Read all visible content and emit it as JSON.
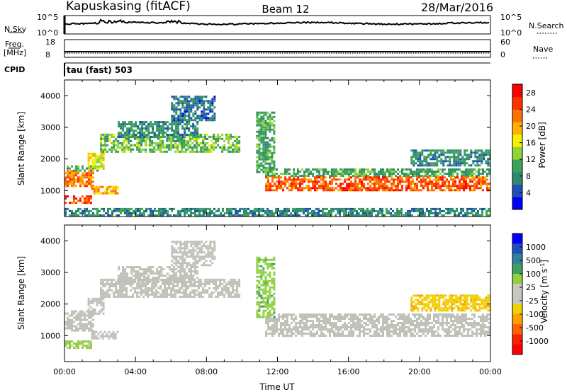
{
  "header": {
    "station": "Kapuskasing (fitACF)",
    "beam": "Beam 12",
    "date": "28/Mar/2016"
  },
  "panels": {
    "nsky": {
      "left_label": "N.Sky",
      "right_label": "N.Search",
      "left_ticks": [
        "10^5",
        "10^0"
      ],
      "right_ticks": [
        "10^5",
        "10^0"
      ]
    },
    "freq": {
      "left_label_1": "Freq.",
      "left_label_2": "[MHz]",
      "right_label": "Nave",
      "left_ticks": [
        "18",
        "8"
      ],
      "right_ticks": [
        "60",
        "0"
      ]
    },
    "cpid": {
      "label": "CPID",
      "value": "tau (fast) 503"
    }
  },
  "colors": {
    "power_scale": [
      "#0000ff",
      "#1f4fb4",
      "#2e8a6e",
      "#3da35a",
      "#8fd23a",
      "#f2f200",
      "#ffb000",
      "#ff7000",
      "#ff3000",
      "#ff0000"
    ],
    "velocity_scale": [
      "#0000ff",
      "#2050c0",
      "#3080a0",
      "#40a060",
      "#90d040",
      "#c8c8c0",
      "#c8c8c0",
      "#f0d000",
      "#ffa000",
      "#ff6000",
      "#ff2000",
      "#ff0000"
    ],
    "ground_scatter": "#c0c0b8"
  },
  "chart_data": [
    {
      "type": "heatmap",
      "title": "",
      "xlabel": "Time UT",
      "ylabel": "Slant Range [km]",
      "xlim": [
        "00:00",
        "24:00"
      ],
      "ylim": [
        180,
        4500
      ],
      "x_ticks": [
        "00:00",
        "04:00",
        "08:00",
        "12:00",
        "16:00",
        "20:00",
        "00:00"
      ],
      "y_ticks": [
        1000,
        2000,
        3000,
        4000
      ],
      "colorbar": {
        "label": "Power [dB]",
        "ticks": [
          4,
          8,
          12,
          16,
          20,
          24,
          28
        ],
        "range": [
          0,
          30
        ]
      },
      "regions": [
        {
          "t0": 0.0,
          "t1": 1.6,
          "r0": 1150,
          "r1": 1650,
          "value": 22
        },
        {
          "t0": 0.0,
          "t1": 1.5,
          "r0": 600,
          "r1": 850,
          "value": 24
        },
        {
          "t0": 1.5,
          "t1": 3.0,
          "r0": 900,
          "r1": 1150,
          "value": 20
        },
        {
          "t0": 0.0,
          "t1": 1.8,
          "r0": 1650,
          "r1": 1800,
          "value": 10
        },
        {
          "t0": 1.3,
          "t1": 2.2,
          "r0": 1700,
          "r1": 2200,
          "value": 16
        },
        {
          "t0": 2.0,
          "t1": 9.8,
          "r0": 2200,
          "r1": 2800,
          "value": 12
        },
        {
          "t0": 3.0,
          "t1": 7.5,
          "r0": 2700,
          "r1": 3200,
          "value": 8
        },
        {
          "t0": 11.3,
          "t1": 24.0,
          "r0": 1450,
          "r1": 1700,
          "value": 10
        },
        {
          "t0": 11.3,
          "t1": 24.0,
          "r0": 1000,
          "r1": 1450,
          "value": 24
        },
        {
          "t0": 10.8,
          "t1": 11.8,
          "r0": 1600,
          "r1": 3500,
          "value": 10
        },
        {
          "t0": 19.5,
          "t1": 24.0,
          "r0": 1800,
          "r1": 2300,
          "value": 8
        },
        {
          "t0": 6.0,
          "t1": 8.5,
          "r0": 3200,
          "r1": 4000,
          "value": 6
        },
        {
          "t0": 0.0,
          "t1": 24.0,
          "r0": 200,
          "r1": 450,
          "value": 8
        }
      ]
    },
    {
      "type": "heatmap",
      "title": "",
      "xlabel": "Time UT",
      "ylabel": "Slant Range [km]",
      "xlim": [
        "00:00",
        "24:00"
      ],
      "ylim": [
        180,
        4500
      ],
      "x_ticks": [
        "00:00",
        "04:00",
        "08:00",
        "12:00",
        "16:00",
        "20:00",
        "00:00"
      ],
      "y_ticks": [
        1000,
        2000,
        3000,
        4000
      ],
      "colorbar": {
        "label": "Velocity [m s^-1]",
        "ticks": [
          1000,
          500,
          100,
          25,
          -25,
          -100,
          -500,
          -1000
        ]
      },
      "regions": [
        {
          "t0": 0.0,
          "t1": 1.6,
          "r0": 1150,
          "r1": 1800,
          "value": 0
        },
        {
          "t0": 0.0,
          "t1": 1.5,
          "r0": 600,
          "r1": 850,
          "value": 50
        },
        {
          "t0": 1.5,
          "t1": 3.0,
          "r0": 900,
          "r1": 1150,
          "value": 0
        },
        {
          "t0": 1.3,
          "t1": 2.2,
          "r0": 1700,
          "r1": 2200,
          "value": 0
        },
        {
          "t0": 2.0,
          "t1": 9.8,
          "r0": 2200,
          "r1": 2800,
          "value": 0
        },
        {
          "t0": 3.0,
          "t1": 7.5,
          "r0": 2700,
          "r1": 3200,
          "value": 0
        },
        {
          "t0": 11.3,
          "t1": 24.0,
          "r0": 1000,
          "r1": 1700,
          "value": 0
        },
        {
          "t0": 10.8,
          "t1": 11.8,
          "r0": 1600,
          "r1": 3500,
          "value": 60
        },
        {
          "t0": 19.5,
          "t1": 24.0,
          "r0": 1800,
          "r1": 2300,
          "value": -60
        },
        {
          "t0": 6.0,
          "t1": 8.5,
          "r0": 3200,
          "r1": 4000,
          "value": 0
        }
      ]
    }
  ]
}
